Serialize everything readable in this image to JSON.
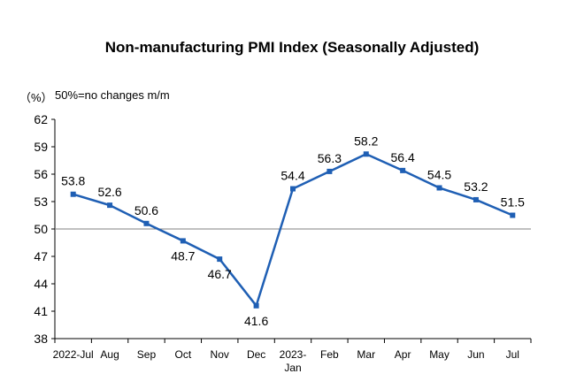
{
  "chart_data": {
    "type": "line",
    "title": "Non-manufacturing PMI Index (Seasonally Adjusted)",
    "unit_label": "（%）",
    "note": "50%=no changes m/m",
    "categories": [
      "2022-Jul",
      "Aug",
      "Sep",
      "Oct",
      "Nov",
      "Dec",
      "2023-\nJan",
      "Feb",
      "Mar",
      "Apr",
      "May",
      "Jun",
      "Jul"
    ],
    "series": [
      {
        "values": [
          53.8,
          52.6,
          50.6,
          48.7,
          46.7,
          41.6,
          54.4,
          56.3,
          58.2,
          56.4,
          54.5,
          53.2,
          51.5
        ]
      }
    ],
    "ylim": [
      38,
      62
    ],
    "yticks": [
      38,
      41,
      44,
      47,
      50,
      53,
      56,
      59,
      62
    ],
    "reference_line": 50,
    "grid": false,
    "legend": "none",
    "line_color": "#1F5FB4",
    "reference_line_color": "#808080"
  }
}
